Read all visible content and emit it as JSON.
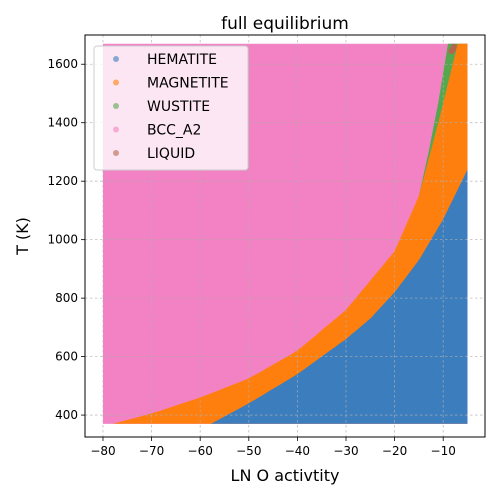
{
  "chart_data": {
    "type": "scatter",
    "title": "full equilibrium",
    "xlabel": "LN O activtity",
    "ylabel": "T (K)",
    "xlim": [
      -83.7,
      -1.4
    ],
    "ylim": [
      325,
      1700
    ],
    "xticks": [
      -80,
      -70,
      -60,
      -50,
      -40,
      -30,
      -20,
      -10
    ],
    "xtick_labels": [
      "−80",
      "−70",
      "−60",
      "−50",
      "−40",
      "−30",
      "−20",
      "−10"
    ],
    "yticks": [
      400,
      600,
      800,
      1000,
      1200,
      1400,
      1600
    ],
    "xtick_labels_note": "",
    "ytick_labels": [
      "400",
      "600",
      "800",
      "1000",
      "1200",
      "1400",
      "1600"
    ],
    "grid": true,
    "legend_position": "upper-left",
    "x_range": [
      -80,
      -5
    ],
    "t_range": [
      370,
      1670
    ],
    "series": [
      {
        "name": "HEMATITE",
        "color": "#3b7dbd",
        "region": "right of the hematite/magnetite boundary"
      },
      {
        "name": "MAGNETITE",
        "color": "#ff7f0e",
        "region": "between the magnetite/bcc and hematite/magnetite boundaries"
      },
      {
        "name": "WUSTITE",
        "color": "#55a84d",
        "region": "thin band between the magnetite and bcc fields above ~1100 K"
      },
      {
        "name": "BCC_A2",
        "color": "#f282c3",
        "region": "left of the magnetite/bcc boundary"
      },
      {
        "name": "LIQUID",
        "color": "#b5654f",
        "region": "small patch near x = -8, T = 1650 K"
      }
    ],
    "boundaries": {
      "hematite_magnetite": [
        [
          -57.8,
          370
        ],
        [
          -50,
          440
        ],
        [
          -40,
          540
        ],
        [
          -30,
          660
        ],
        [
          -25,
          730
        ],
        [
          -20,
          820
        ],
        [
          -15,
          930
        ],
        [
          -10,
          1070
        ],
        [
          -5,
          1240
        ]
      ],
      "magnetite_bcc": [
        [
          -78,
          370
        ],
        [
          -70,
          405
        ],
        [
          -60,
          460
        ],
        [
          -50,
          525
        ],
        [
          -40,
          620
        ],
        [
          -30,
          760
        ],
        [
          -20,
          960
        ],
        [
          -15,
          1150
        ],
        [
          -11,
          1400
        ],
        [
          -7,
          1670
        ]
      ],
      "wustite_bcc": [
        [
          -15,
          1150
        ],
        [
          -13,
          1300
        ],
        [
          -11,
          1470
        ],
        [
          -9,
          1670
        ]
      ]
    },
    "liquid_points": [
      [
        -8,
        1650
      ],
      [
        -7.8,
        1660
      ],
      [
        -8.3,
        1645
      ]
    ]
  }
}
